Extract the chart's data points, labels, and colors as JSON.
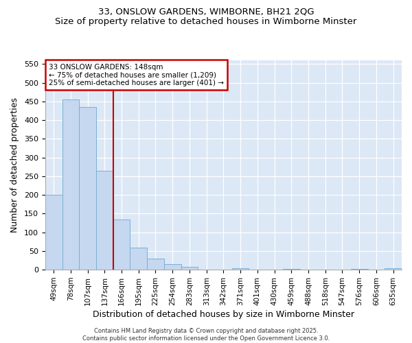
{
  "title": "33, ONSLOW GARDENS, WIMBORNE, BH21 2QG",
  "subtitle": "Size of property relative to detached houses in Wimborne Minster",
  "xlabel": "Distribution of detached houses by size in Wimborne Minster",
  "ylabel": "Number of detached properties",
  "bar_labels": [
    "49sqm",
    "78sqm",
    "107sqm",
    "137sqm",
    "166sqm",
    "195sqm",
    "225sqm",
    "254sqm",
    "283sqm",
    "313sqm",
    "342sqm",
    "371sqm",
    "401sqm",
    "430sqm",
    "459sqm",
    "488sqm",
    "518sqm",
    "547sqm",
    "576sqm",
    "606sqm",
    "635sqm"
  ],
  "bar_values": [
    200,
    455,
    435,
    265,
    135,
    60,
    30,
    15,
    8,
    0,
    0,
    4,
    0,
    0,
    3,
    0,
    0,
    0,
    3,
    0,
    4
  ],
  "bar_color": "#c5d8f0",
  "bar_edgecolor": "#7bafd4",
  "property_label": "33 ONSLOW GARDENS: 148sqm",
  "annotation_line1": "← 75% of detached houses are smaller (1,​209)",
  "annotation_line2": "25% of semi-detached houses are larger (401) →",
  "vline_color": "#cc0000",
  "vline_position": 3.5,
  "ylim": [
    0,
    560
  ],
  "yticks": [
    0,
    50,
    100,
    150,
    200,
    250,
    300,
    350,
    400,
    450,
    500,
    550
  ],
  "annotation_box_color": "#cc0000",
  "footer_line1": "Contains HM Land Registry data © Crown copyright and database right 2025.",
  "footer_line2": "Contains public sector information licensed under the Open Government Licence 3.0.",
  "fig_facecolor": "#ffffff",
  "plot_bg_color": "#dce8f5"
}
